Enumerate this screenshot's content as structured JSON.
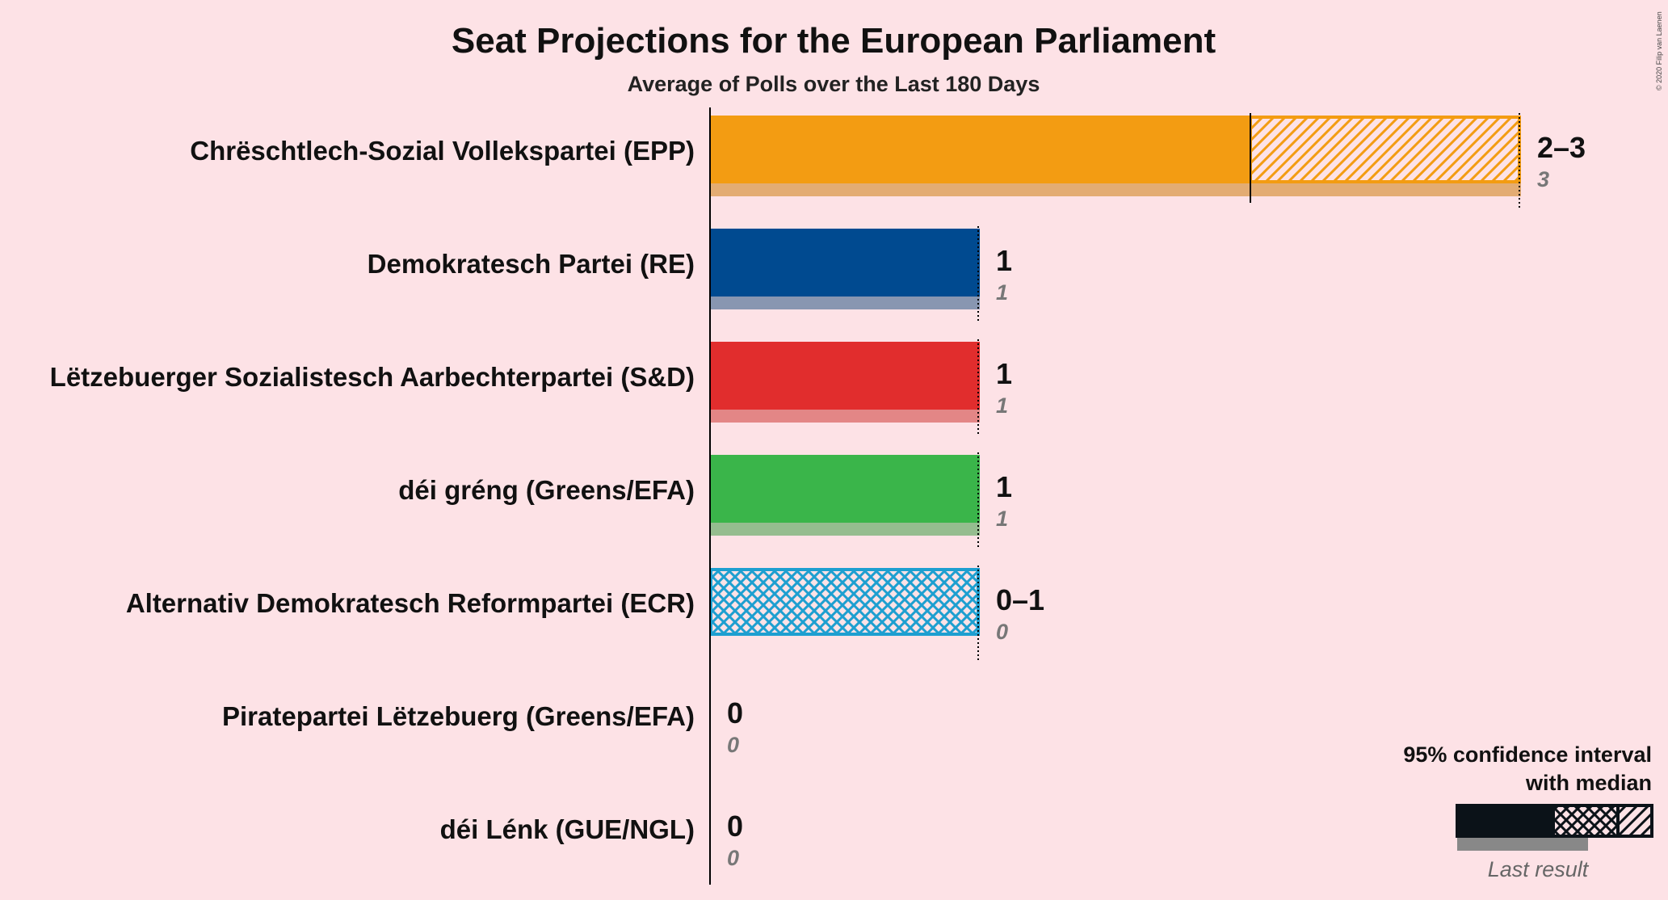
{
  "chart_data": {
    "type": "bar",
    "title": "Seat Projections for the European Parliament",
    "subtitle": "Average of Polls over the Last 180 Days",
    "xlim": [
      0,
      3
    ],
    "parties": [
      {
        "name": "Chrëschtlech-Sozial Vollekspartei (EPP)",
        "color": "#F39C12",
        "lastColor": "#E3AC73",
        "low": 2,
        "median": 2,
        "high": 3,
        "range_label": "2–3",
        "last_result": 3
      },
      {
        "name": "Demokratesch Partei (RE)",
        "color": "#004A90",
        "lastColor": "#8896B1",
        "low": 1,
        "median": 1,
        "high": 1,
        "range_label": "1",
        "last_result": 1
      },
      {
        "name": "Lëtzebuerger Sozialistesch Aarbechterpartei (S&D)",
        "color": "#E12D2D",
        "lastColor": "#E38686",
        "low": 1,
        "median": 1,
        "high": 1,
        "range_label": "1",
        "last_result": 1
      },
      {
        "name": "déi gréng (Greens/EFA)",
        "color": "#3AB54A",
        "lastColor": "#95BD8F",
        "low": 1,
        "median": 1,
        "high": 1,
        "range_label": "1",
        "last_result": 1
      },
      {
        "name": "Alternativ Demokratesch Reformpartei (ECR)",
        "color": "#1D9FD0",
        "lastColor": "#8FC7DF",
        "low": 0,
        "median": 0,
        "high": 1,
        "range_label": "0–1",
        "last_result": 0
      },
      {
        "name": "Piratepartei Lëtzebuerg (Greens/EFA)",
        "color": "#000000",
        "lastColor": "#888888",
        "low": 0,
        "median": 0,
        "high": 0,
        "range_label": "0",
        "last_result": 0
      },
      {
        "name": "déi Lénk (GUE/NGL)",
        "color": "#C0001C",
        "lastColor": "#888888",
        "low": 0,
        "median": 0,
        "high": 0,
        "range_label": "0",
        "last_result": 0
      }
    ]
  },
  "legend": {
    "line1": "95% confidence interval",
    "line2": "with median",
    "last_result": "Last result"
  },
  "copyright": "© 2020 Filip van Laenen"
}
